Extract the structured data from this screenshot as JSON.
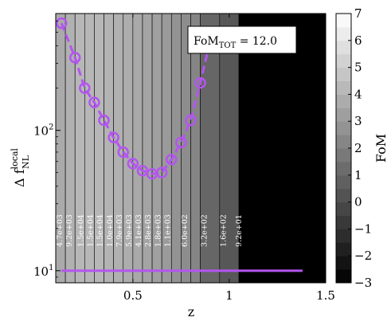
{
  "chart_data": {
    "type": "line",
    "xlabel": "z",
    "ylabel": {
      "base": "Δ f",
      "superscript": "local",
      "subscript": "NL"
    },
    "x_ticks": [
      "0.5",
      "1",
      "1.5"
    ],
    "x_tick_values": [
      0.5,
      1.0,
      1.5
    ],
    "xlim": [
      0.1,
      1.5
    ],
    "y_scale": "log",
    "ylim": [
      8.2,
      680
    ],
    "y_ticks": [
      {
        "base": "10",
        "exp": "1",
        "value": 10
      },
      {
        "base": "10",
        "exp": "2",
        "value": 100
      }
    ],
    "fom_box": {
      "base": "FoM",
      "subscript": "TOT",
      "value": " = 12.0"
    },
    "colorbar": {
      "label": "FoM",
      "range": [
        -3,
        7
      ],
      "ticks": [
        "7",
        "6",
        "5",
        "4",
        "3",
        "2",
        "1",
        "0",
        "−1",
        "−2",
        "−3"
      ],
      "tick_values": [
        7,
        6,
        5,
        4,
        3,
        2,
        1,
        0,
        -1,
        -2,
        -3
      ]
    },
    "bins": [
      {
        "z": 0.15,
        "label": "4.7e+03",
        "fom": 3.67
      },
      {
        "z": 0.2,
        "label": "9.2e+03",
        "fom": 3.96
      },
      {
        "z": 0.3,
        "label": "1.5e+04",
        "fom": 4.18
      },
      {
        "z": 0.35,
        "label": "1.5e+04",
        "fom": 4.18
      },
      {
        "z": 0.4,
        "label": "1.5e+04",
        "fom": 4.18
      },
      {
        "z": 0.45,
        "label": "1.0e+04",
        "fom": 4.0
      },
      {
        "z": 0.5,
        "label": "7.9e+03",
        "fom": 3.9
      },
      {
        "z": 0.6,
        "label": "5.9e+03",
        "fom": 3.77
      },
      {
        "z": 0.65,
        "label": "4.1e+03",
        "fom": 3.61
      },
      {
        "z": 0.7,
        "label": "2.8e+03",
        "fom": 3.45
      },
      {
        "z": 0.8,
        "label": "1.8e+03",
        "fom": 3.26
      },
      {
        "z": 0.85,
        "label": "1.1e+03",
        "fom": 3.04
      },
      {
        "z": 0.9,
        "label": "6.0e+02",
        "fom": 2.78
      },
      {
        "z": 1.0,
        "label": "3.2e+02",
        "fom": 2.51
      },
      {
        "z": 1.1,
        "label": "1.6e+02",
        "fom": 2.2
      },
      {
        "z": 1.2,
        "label": "9.2e+01",
        "fom": 1.96
      }
    ],
    "strips": [
      {
        "x0": 0.1,
        "x1": 0.15,
        "fom": 3.67
      },
      {
        "x0": 0.15,
        "x1": 0.2,
        "fom": 3.96
      },
      {
        "x0": 0.2,
        "x1": 0.25,
        "fom": 4.18
      },
      {
        "x0": 0.25,
        "x1": 0.3,
        "fom": 4.18
      },
      {
        "x0": 0.3,
        "x1": 0.35,
        "fom": 4.18
      },
      {
        "x0": 0.35,
        "x1": 0.4,
        "fom": 4.0
      },
      {
        "x0": 0.4,
        "x1": 0.45,
        "fom": 3.9
      },
      {
        "x0": 0.45,
        "x1": 0.5,
        "fom": 3.77
      },
      {
        "x0": 0.5,
        "x1": 0.55,
        "fom": 3.61
      },
      {
        "x0": 0.55,
        "x1": 0.6,
        "fom": 3.45
      },
      {
        "x0": 0.6,
        "x1": 0.65,
        "fom": 3.26
      },
      {
        "x0": 0.65,
        "x1": 0.7,
        "fom": 3.04
      },
      {
        "x0": 0.7,
        "x1": 0.75,
        "fom": 2.78
      },
      {
        "x0": 0.75,
        "x1": 0.8,
        "fom": 2.51
      },
      {
        "x0": 0.8,
        "x1": 0.85,
        "fom": 2.2
      },
      {
        "x0": 0.85,
        "x1": 0.95,
        "fom": 1.0
      },
      {
        "x0": 0.95,
        "x1": 1.05,
        "fom": 0.4
      },
      {
        "x0": 1.05,
        "x1": 1.5,
        "fom": -3.0
      }
    ],
    "strip_labels": [
      {
        "z": 0.12,
        "text": "4.7e+03"
      },
      {
        "z": 0.17,
        "text": "9.2e+03"
      },
      {
        "z": 0.23,
        "text": "1.5e+04"
      },
      {
        "z": 0.28,
        "text": "1.5e+04"
      },
      {
        "z": 0.33,
        "text": "1.5e+04"
      },
      {
        "z": 0.38,
        "text": "1.0e+04"
      },
      {
        "z": 0.43,
        "text": "7.9e+03"
      },
      {
        "z": 0.48,
        "text": "5.9e+03"
      },
      {
        "z": 0.53,
        "text": "4.1e+03"
      },
      {
        "z": 0.58,
        "text": "2.8e+03"
      },
      {
        "z": 0.63,
        "text": "1.8e+03"
      },
      {
        "z": 0.68,
        "text": "1.1e+03"
      },
      {
        "z": 0.77,
        "text": "6.0e+02"
      },
      {
        "z": 0.87,
        "text": "3.2e+02"
      },
      {
        "z": 0.97,
        "text": "1.6e+02"
      },
      {
        "z": 1.05,
        "text": "9.2e+01"
      }
    ],
    "series": [
      {
        "color": "#b455f0",
        "x": [
          0.13,
          0.2,
          0.25,
          0.3,
          0.35,
          0.4,
          0.45,
          0.5,
          0.55,
          0.6,
          0.65,
          0.7,
          0.75,
          0.8,
          0.85,
          0.9,
          1.0,
          1.1,
          1.2,
          1.3,
          1.38
        ],
        "y": [
          580,
          330,
          200,
          158,
          118,
          89,
          70,
          58,
          51.5,
          49,
          50,
          62,
          82,
          118,
          218,
          430,
          0,
          0,
          0,
          0,
          0
        ]
      }
    ],
    "reference_line": {
      "color": "#b455f0",
      "y": 10,
      "x0": 0.13,
      "x1": 1.38
    }
  }
}
